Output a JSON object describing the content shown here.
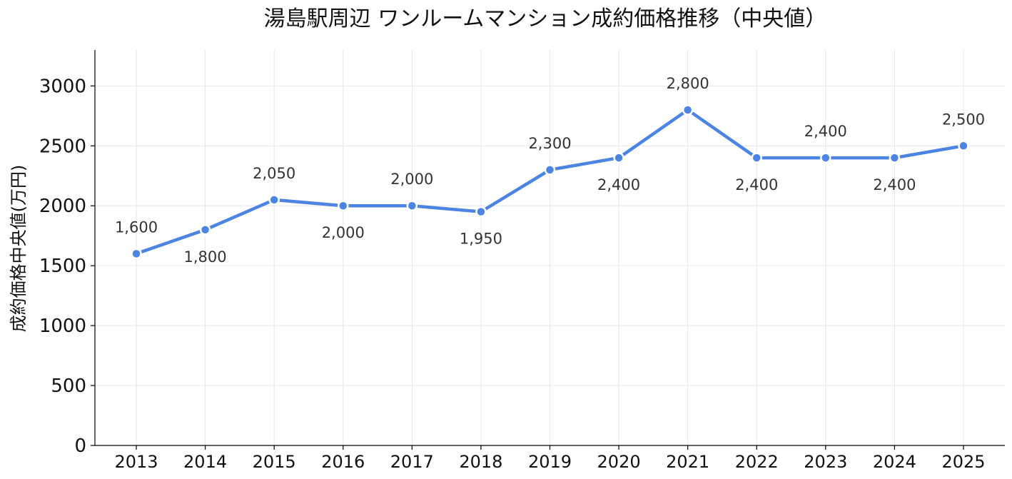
{
  "chart_data": {
    "type": "line",
    "title": "湯島駅周辺 ワンルームマンション成約価格推移（中央値）",
    "xlabel": "",
    "ylabel": "成約価格中央値(万円)",
    "x": [
      "2013",
      "2014",
      "2015",
      "2016",
      "2017",
      "2018",
      "2019",
      "2020",
      "2021",
      "2022",
      "2023",
      "2024",
      "2025"
    ],
    "series": [
      {
        "values": [
          1600,
          1800,
          2050,
          2000,
          2000,
          1950,
          2300,
          2400,
          2800,
          2400,
          2400,
          2400,
          2500
        ],
        "labels": [
          "1,600",
          "1,800",
          "2,050",
          "2,000",
          "2,000",
          "1,950",
          "2,300",
          "2,400",
          "2,800",
          "2,400",
          "2,400",
          "2,400",
          "2,500"
        ],
        "label_side": [
          "above",
          "below",
          "above",
          "below",
          "above",
          "below",
          "above",
          "below",
          "above",
          "below",
          "above",
          "below",
          "above"
        ],
        "color": "#4c84e4"
      }
    ],
    "yticks": [
      "0",
      "500",
      "1000",
      "1500",
      "2000",
      "2500",
      "3000"
    ],
    "ylim": [
      0,
      3300
    ],
    "grid": true,
    "legend": "none"
  }
}
